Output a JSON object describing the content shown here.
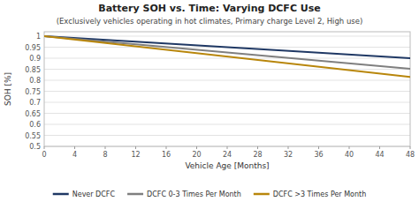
{
  "chart_data": {
    "type": "line",
    "title": "Battery SOH vs. Time: Varying DCFC Use",
    "subtitle": "(Exclusively vehicles operating in hot climates, Primary charge Level 2, High use)",
    "xlabel": "Vehicle Age [Months]",
    "ylabel": "SOH [%]",
    "x": [
      0,
      48
    ],
    "series": [
      {
        "name": "Never DCFC",
        "color": "#1f3864",
        "values": [
          1.0,
          0.9
        ]
      },
      {
        "name": "DCFC 0-3 Times Per Month",
        "color": "#7f7f7f",
        "values": [
          1.0,
          0.852
        ]
      },
      {
        "name": "DCFC >3 Times Per Month",
        "color": "#b8860b",
        "values": [
          1.0,
          0.815
        ]
      }
    ],
    "xlim": [
      0,
      48
    ],
    "ylim": [
      0.5,
      1.02
    ],
    "xticks": [
      0,
      4,
      8,
      12,
      16,
      20,
      24,
      28,
      32,
      36,
      40,
      44,
      48
    ],
    "yticks": [
      0.5,
      0.55,
      0.6,
      0.65,
      0.7,
      0.75,
      0.8,
      0.85,
      0.9,
      0.95,
      1
    ],
    "grid": true,
    "legend": "bottom"
  }
}
